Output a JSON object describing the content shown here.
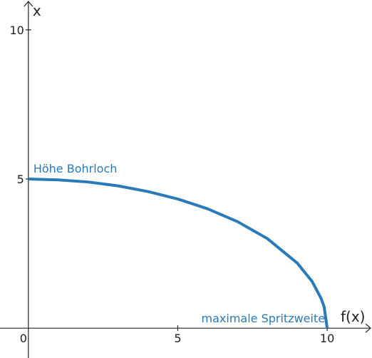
{
  "chart_data": {
    "type": "line",
    "x_label": "f(x)",
    "y_label": "x",
    "x": [
      0,
      1,
      2,
      3,
      4,
      5,
      6,
      7,
      8,
      9,
      9.5,
      9.8,
      9.9,
      10
    ],
    "series": [
      {
        "color": "#2a7ab9",
        "values": [
          5,
          4.97,
          4.9,
          4.77,
          4.58,
          4.33,
          4,
          3.57,
          3,
          2.18,
          1.56,
          0.99,
          0.71,
          0
        ]
      }
    ],
    "xlim": [
      -0.95,
      11.5
    ],
    "ylim": [
      -1,
      11
    ],
    "xticks": [
      0,
      5,
      10
    ],
    "yticks": [
      5,
      10
    ],
    "annotations": [
      "Höhe Bohrloch",
      "maximale Spritzweite"
    ],
    "grid": false
  }
}
